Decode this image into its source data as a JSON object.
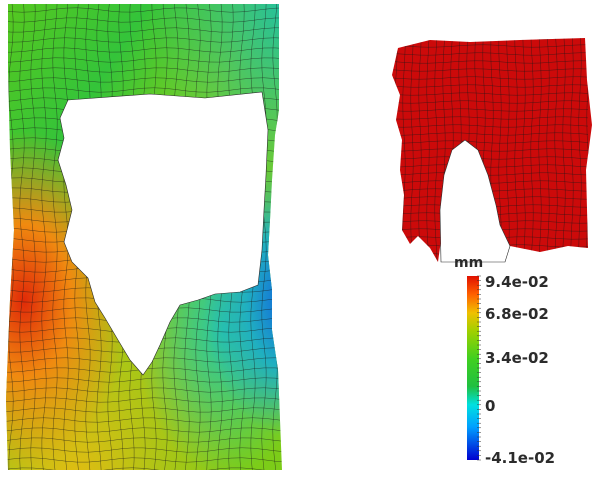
{
  "legend": {
    "unit": "mm",
    "ticks": [
      {
        "label": "9.4e-02",
        "value": 0.094
      },
      {
        "label": "6.8e-02",
        "value": 0.068
      },
      {
        "label": "3.4e-02",
        "value": 0.034
      },
      {
        "label": "0",
        "value": 0
      },
      {
        "label": "-4.1e-02",
        "value": -0.041
      }
    ],
    "range": [
      -0.041,
      0.094
    ],
    "colormap": [
      "#0000d0",
      "#00a0ff",
      "#00e0e0",
      "#20c040",
      "#40d020",
      "#a0d000",
      "#f0c000",
      "#ff6000",
      "#e01000"
    ]
  },
  "colors": {
    "mesh_line": "#1a1a1a",
    "right_part_fill": "#cc0a0a",
    "hole": "#ffffff"
  }
}
